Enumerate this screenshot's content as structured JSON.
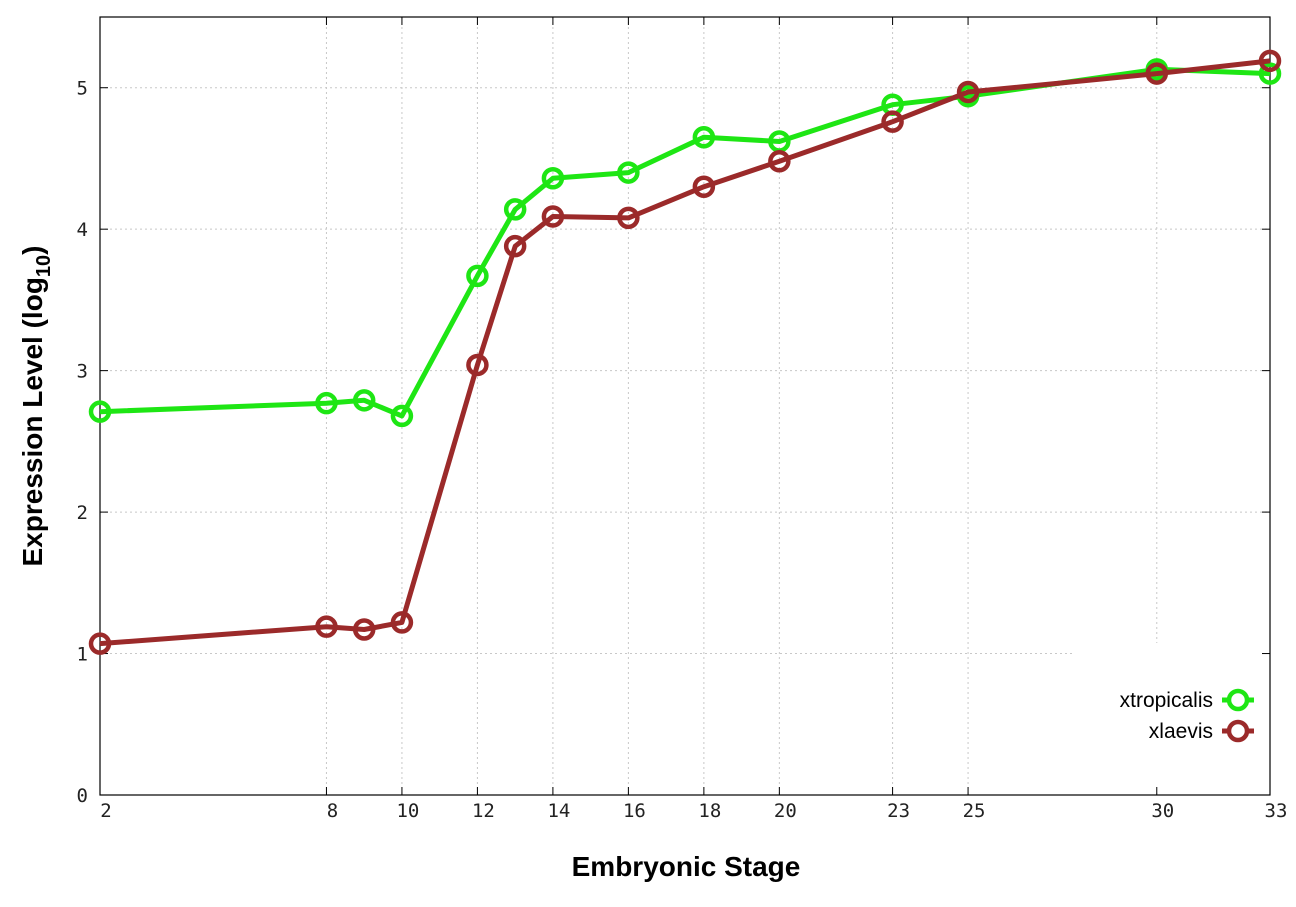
{
  "chart_data": {
    "type": "line",
    "title": "",
    "xlabel": "Embryonic Stage",
    "ylabel": "Expression Level (log",
    "ylabel_sub": "10",
    "ylabel_close": ")",
    "xlim": [
      2,
      33
    ],
    "ylim": [
      0,
      5.5
    ],
    "x_ticks": [
      2,
      8,
      10,
      12,
      14,
      16,
      18,
      20,
      23,
      25,
      30,
      33
    ],
    "y_ticks": [
      0,
      1,
      2,
      3,
      4,
      5
    ],
    "grid": true,
    "legend": "bottom-right",
    "series": [
      {
        "name": "xtropicalis",
        "color": "#1ee614",
        "x": [
          2,
          8,
          9,
          10,
          12,
          13,
          14,
          16,
          18,
          20,
          23,
          25,
          30,
          33
        ],
        "y": [
          2.71,
          2.77,
          2.79,
          2.68,
          3.67,
          4.14,
          4.36,
          4.4,
          4.65,
          4.62,
          4.88,
          4.94,
          5.13,
          5.1
        ]
      },
      {
        "name": "xlaevis",
        "color": "#9b2a2a",
        "x": [
          2,
          8,
          9,
          10,
          12,
          13,
          14,
          16,
          18,
          20,
          23,
          25,
          30,
          33
        ],
        "y": [
          1.07,
          1.19,
          1.17,
          1.22,
          3.04,
          3.88,
          4.09,
          4.08,
          4.3,
          4.48,
          4.76,
          4.97,
          5.1,
          5.19
        ]
      }
    ]
  }
}
